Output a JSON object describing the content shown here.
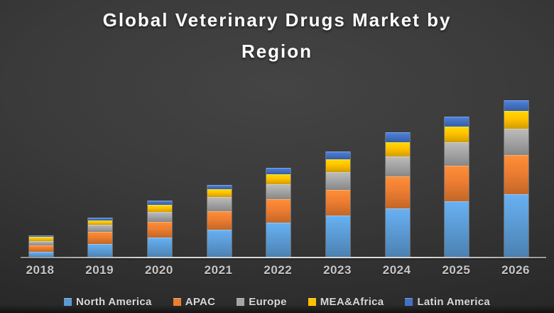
{
  "header": {
    "title_lines": [
      "Global Veterinary Drugs Market by",
      "Region"
    ]
  },
  "chart_data": {
    "type": "bar",
    "subtype": "stacked-column",
    "title": "Global Veterinary Drugs Market by Region",
    "categories": [
      "2018",
      "2019",
      "2020",
      "2021",
      "2022",
      "2023",
      "2024",
      "2025",
      "2026"
    ],
    "series": [
      {
        "name": "North America",
        "color": "#5B9BD5",
        "values": [
          0.9,
          2.0,
          2.9,
          4.0,
          5.0,
          6.0,
          7.0,
          8.0,
          9.0
        ]
      },
      {
        "name": "APAC",
        "color": "#ED7D31",
        "values": [
          0.9,
          1.7,
          2.2,
          2.6,
          3.3,
          3.6,
          4.5,
          5.0,
          5.5
        ]
      },
      {
        "name": "Europe",
        "color": "#A5A5A5",
        "values": [
          0.6,
          1.0,
          1.4,
          2.0,
          2.1,
          2.5,
          2.8,
          3.3,
          3.7
        ]
      },
      {
        "name": "MEA&Africa",
        "color": "#FFC000",
        "values": [
          0.6,
          0.6,
          1.0,
          1.1,
          1.4,
          1.8,
          2.0,
          2.2,
          2.5
        ]
      },
      {
        "name": "Latin America",
        "color": "#4472C4",
        "values": [
          0.2,
          0.4,
          0.6,
          0.6,
          0.9,
          1.1,
          1.4,
          1.4,
          1.5
        ]
      }
    ],
    "totals": [
      3.2,
      5.7,
      8.1,
      10.3,
      12.7,
      15.0,
      17.7,
      19.9,
      22.2
    ],
    "xlabel": "",
    "ylabel": "",
    "ylim": [
      0,
      24
    ],
    "value_axis_visible": false,
    "gridlines": false,
    "legend_position": "bottom",
    "units": "relative units (no value axis or data labels shown in chart)"
  },
  "colors": {
    "background_center": "#444444",
    "background_edge": "#222222",
    "title_text": "#ffffff",
    "axis_line": "#c9c9c9",
    "tick_label": "#c6c6c6",
    "legend_text": "#d8d8d8"
  }
}
